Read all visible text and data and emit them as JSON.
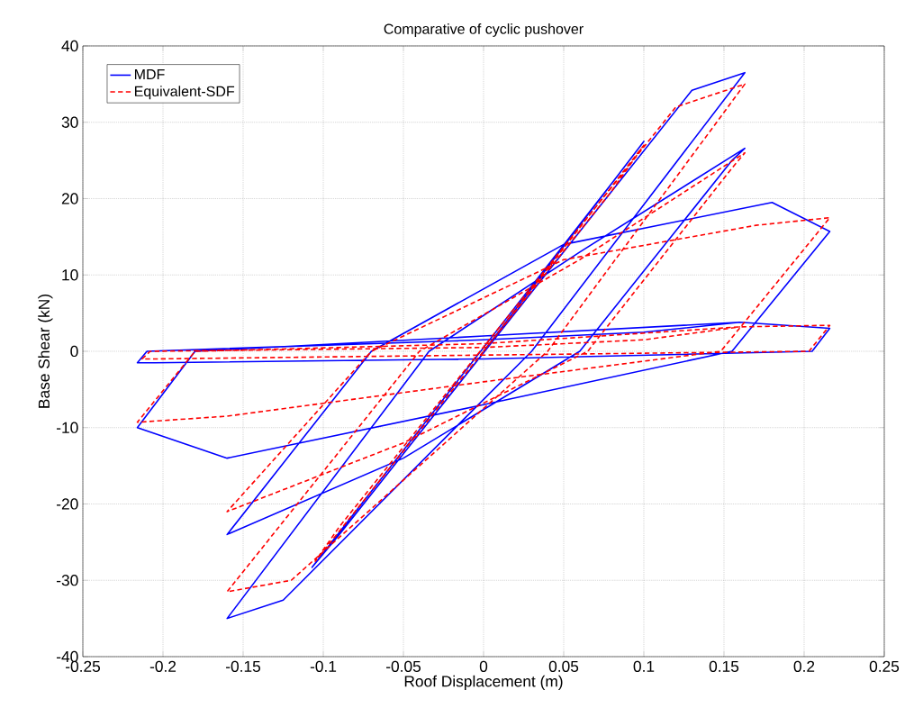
{
  "chart_data": {
    "type": "line",
    "title": "Comparative of cyclic pushover",
    "xlabel": "Roof Displacement (m)",
    "ylabel": "Base Shear (kN)",
    "xlim": [
      -0.25,
      0.25
    ],
    "ylim": [
      -40,
      40
    ],
    "xticks": [
      -0.25,
      -0.2,
      -0.15,
      -0.1,
      -0.05,
      0,
      0.05,
      0.1,
      0.15,
      0.2,
      0.25
    ],
    "yticks": [
      -40,
      -30,
      -20,
      -10,
      0,
      10,
      20,
      30,
      40
    ],
    "grid": true,
    "legend": "top left",
    "series": [
      {
        "name": "MDF",
        "color": "#0000ff",
        "line_style": "solid",
        "x": [
          0,
          0.1,
          0.08,
          -0.107,
          -0.09,
          0.13,
          0.163,
          0.03,
          -0.125,
          -0.16,
          -0.034,
          0.06,
          0.163,
          0.155,
          0.06,
          -0.05,
          -0.16,
          -0.07,
          0.05,
          0.18,
          0.216,
          0.155,
          0.0,
          -0.16,
          -0.216,
          -0.18,
          0.0,
          0.16,
          0.216,
          0.205,
          0.0,
          -0.205,
          -0.216,
          -0.21,
          0.0,
          0.1,
          0.16
        ],
        "values": [
          0,
          27.5,
          22,
          -28.3,
          -24,
          34.2,
          36.5,
          0,
          -32.6,
          -35,
          0,
          13,
          26.6,
          25,
          0,
          -14,
          -24,
          0,
          14,
          19.5,
          15.7,
          0,
          -7,
          -14,
          -10,
          0,
          2,
          3.8,
          3,
          0,
          -1,
          -1.5,
          -1.5,
          0,
          1.5,
          2.5,
          3.8
        ]
      },
      {
        "name": "Equivalent-SDF",
        "color": "#ff0000",
        "line_style": "dashed",
        "x": [
          0,
          0.1,
          0.08,
          -0.105,
          -0.09,
          0.12,
          0.163,
          0.04,
          -0.12,
          -0.16,
          -0.04,
          0.06,
          0.163,
          0.155,
          0.065,
          -0.05,
          -0.16,
          -0.07,
          0.05,
          0.17,
          0.216,
          0.148,
          0.0,
          -0.16,
          -0.216,
          -0.18,
          0.0,
          0.16,
          0.216,
          0.203,
          0.0,
          -0.205,
          -0.213,
          -0.208,
          0.0,
          0.1,
          0.16
        ],
        "values": [
          0,
          27,
          21,
          -27.5,
          -23,
          32,
          35,
          0,
          -30,
          -31.5,
          0,
          12,
          26,
          24,
          0,
          -12,
          -21,
          0,
          12,
          16.5,
          17.5,
          0,
          -4,
          -8.5,
          -9.3,
          0,
          1,
          3.2,
          3.4,
          0,
          -0.5,
          -1,
          -1,
          0,
          0.5,
          1.5,
          3.2
        ]
      }
    ]
  }
}
